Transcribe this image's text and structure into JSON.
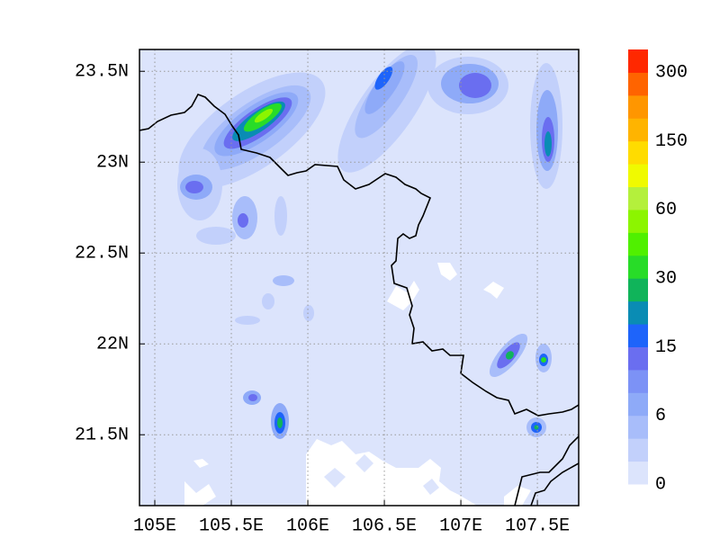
{
  "map": {
    "xlim": [
      104.9,
      107.77
    ],
    "ylim": [
      21.11,
      23.62
    ],
    "grid": true,
    "xticks": [
      {
        "value": 105,
        "label": "105E"
      },
      {
        "value": 105.5,
        "label": "105.5E"
      },
      {
        "value": 106,
        "label": "106E"
      },
      {
        "value": 106.5,
        "label": "106.5E"
      },
      {
        "value": 107,
        "label": "107E"
      },
      {
        "value": 107.5,
        "label": "107.5E"
      }
    ],
    "yticks": [
      {
        "value": 21.5,
        "label": "21.5N"
      },
      {
        "value": 22,
        "label": "22N"
      },
      {
        "value": 22.5,
        "label": "22.5N"
      },
      {
        "value": 23,
        "label": "23N"
      },
      {
        "value": 23.5,
        "label": "23.5N"
      }
    ]
  },
  "colorbar": {
    "colors": [
      "#dce4fc",
      "#c2d0fb",
      "#a8bdfa",
      "#8eaaf8",
      "#7c92f6",
      "#6a6ef0",
      "#1e64fa",
      "#0a8cb4",
      "#10b45a",
      "#28dc28",
      "#50f000",
      "#8cf500",
      "#b4f03c",
      "#f0fa00",
      "#ffdc00",
      "#ffb400",
      "#ff9600",
      "#ff6400",
      "#ff2800"
    ],
    "labels": [
      0,
      6,
      15,
      30,
      60,
      150,
      300
    ]
  }
}
